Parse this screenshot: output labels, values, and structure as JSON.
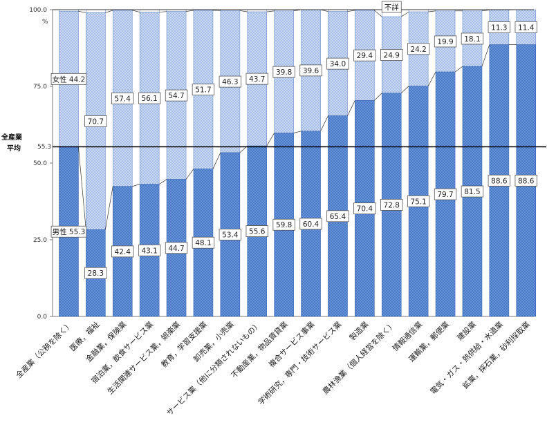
{
  "chart_data": {
    "type": "bar",
    "stacked": true,
    "percent_stacked": true,
    "ylim": [
      0,
      100
    ],
    "yticks": [
      "0.0",
      "25.0",
      "50.0",
      "75.0",
      "100.0"
    ],
    "y_unit": "%",
    "grid": false,
    "categories": [
      "全産業（公務を除く）",
      "医療，福祉",
      "金融業，保険業",
      "宿泊業，飲食サービス業",
      "生活関連サービス業，娯楽業",
      "教育，学習支援業",
      "卸売業，小売業",
      "サービス業（他に分類されないもの）",
      "不動産業，物品賃貸業",
      "複合サービス事業",
      "学術研究，専門・技術サービス業",
      "製造業",
      "農林漁業（個人経営を除く）",
      "情報通信業",
      "運輸業，郵便業",
      "建設業",
      "電気・ガス・熱供給・水道業",
      "鉱業，採石業，砂利採取業"
    ],
    "series": [
      {
        "name": "男性",
        "color": "#4a7bc8",
        "values": [
          55.3,
          28.3,
          42.4,
          43.1,
          44.7,
          48.1,
          53.4,
          55.6,
          59.8,
          60.4,
          65.4,
          70.4,
          72.8,
          75.1,
          79.7,
          81.5,
          88.6,
          88.6
        ],
        "labels": [
          "55.3",
          "28.3",
          "42.4",
          "43.1",
          "44.7",
          "48.1",
          "53.4",
          "55.6",
          "59.8",
          "60.4",
          "65.4",
          "70.4",
          "72.8",
          "75.1",
          "79.7",
          "81.5",
          "88.6",
          "88.6"
        ]
      },
      {
        "name": "女性",
        "color": "#a7c0ea",
        "values": [
          44.2,
          70.7,
          57.4,
          56.1,
          54.7,
          51.7,
          46.3,
          43.7,
          39.8,
          39.6,
          34.0,
          29.4,
          24.9,
          24.2,
          19.9,
          18.1,
          11.3,
          11.4
        ],
        "labels": [
          "44.2",
          "70.7",
          "57.4",
          "56.1",
          "54.7",
          "51.7",
          "46.3",
          "43.7",
          "39.8",
          "39.6",
          "34.0",
          "29.4",
          "24.9",
          "24.2",
          "19.9",
          "18.1",
          "11.3",
          "11.4"
        ]
      }
    ],
    "legend_labels": {
      "male_prefix": "男性",
      "female_prefix": "女性",
      "unknown": "不詳"
    },
    "average": {
      "label_line1": "全産業",
      "label_line2": "平均",
      "value": 55.3,
      "value_label": "55.3"
    }
  }
}
